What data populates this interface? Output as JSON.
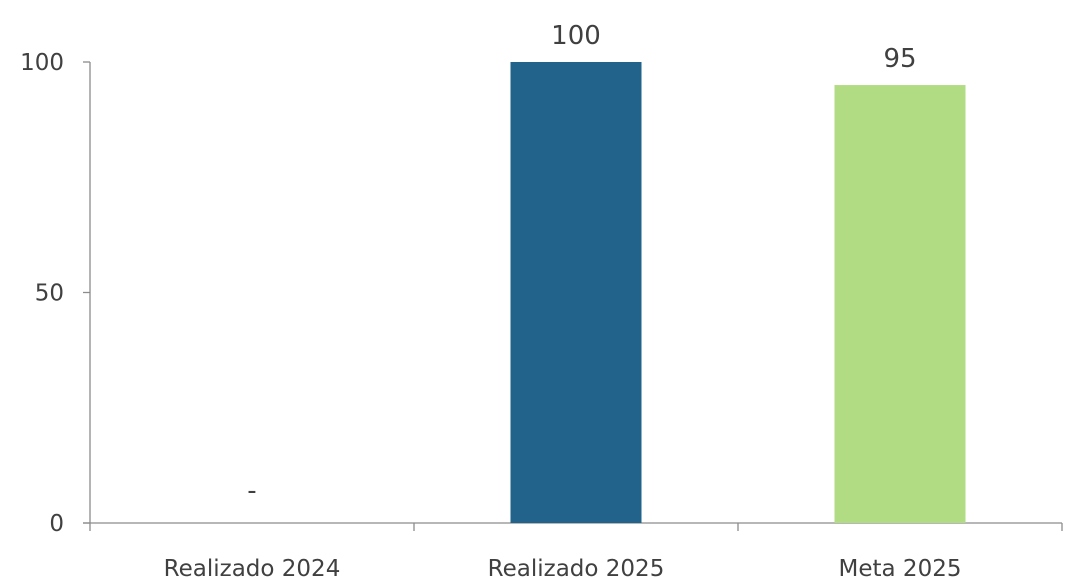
{
  "chart_data": {
    "type": "bar",
    "categories": [
      "Realizado 2024",
      "Realizado 2025",
      "Meta 2025"
    ],
    "values": [
      0,
      100,
      95
    ],
    "data_labels": [
      "-",
      "100",
      "95"
    ],
    "colors": [
      "#21638a",
      "#21638a",
      "#b2dc84"
    ],
    "yticks": [
      0,
      50,
      100
    ],
    "ylim": [
      0,
      100
    ],
    "grid": false,
    "axis_color": "#8c8c8c",
    "text_color": "#404040"
  }
}
